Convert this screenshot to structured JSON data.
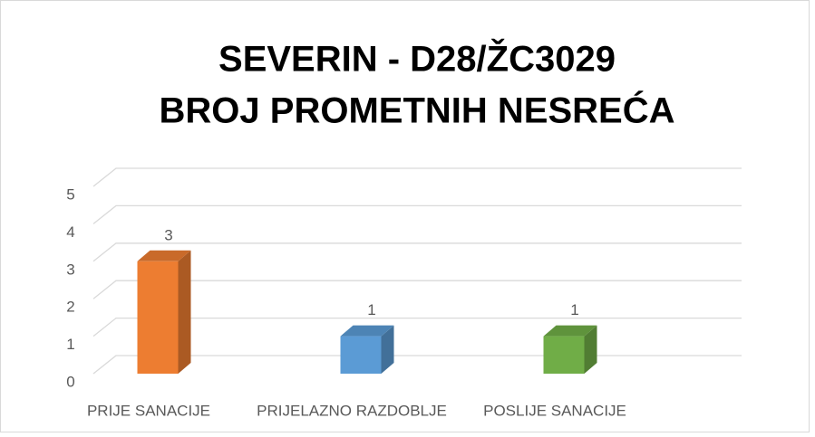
{
  "chart_data": {
    "type": "bar3d",
    "title": [
      "SEVERIN - D28/ŽC3029",
      "BROJ PROMETNIH NESREĆA"
    ],
    "categories": [
      "PRIJE SANACIJE",
      "PRIJELAZNO RAZDOBLJE",
      "POSLIJE SANACIJE"
    ],
    "values": [
      3,
      1,
      1
    ],
    "colors": [
      "#ed7d31",
      "#5b9bd5",
      "#70ad47"
    ],
    "ylim": [
      0,
      5
    ],
    "yticks": [
      0,
      1,
      2,
      3,
      4,
      5
    ],
    "grid": true
  }
}
